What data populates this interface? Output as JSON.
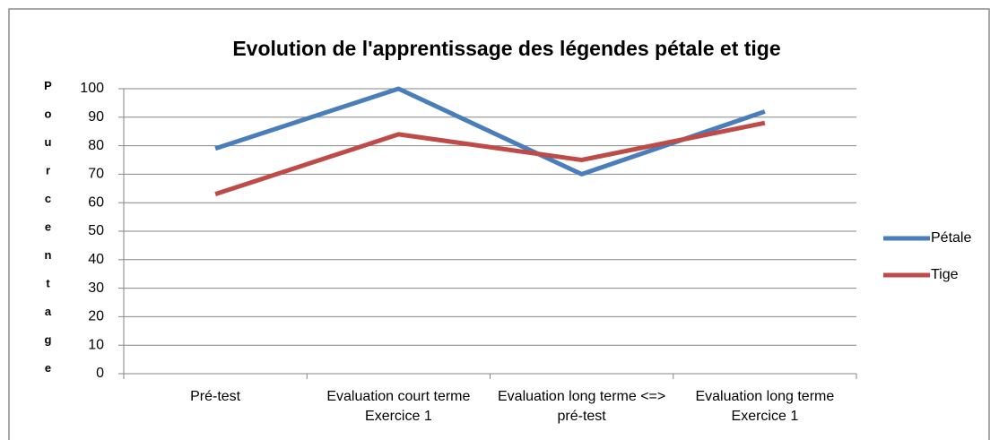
{
  "chart_data": {
    "type": "line",
    "title": "Evolution de l'apprentissage des légendes  pétale et tige",
    "y_label": "Pourcentage",
    "categories": [
      "Pré-test",
      "Evaluation court terme Exercice 1",
      "Evaluation long terme <=> pré-test",
      "Evaluation long terme Exercice 1"
    ],
    "series": [
      {
        "name": "Pétale",
        "color": "#4a7ebb",
        "values": [
          79,
          100,
          70,
          92
        ]
      },
      {
        "name": "Tige",
        "color": "#be4b48",
        "values": [
          63,
          84,
          75,
          88
        ]
      }
    ],
    "ylim": [
      0,
      100
    ],
    "yticks": [
      0,
      10,
      20,
      30,
      40,
      50,
      60,
      70,
      80,
      90,
      100
    ],
    "grid": true,
    "legend": "right"
  }
}
